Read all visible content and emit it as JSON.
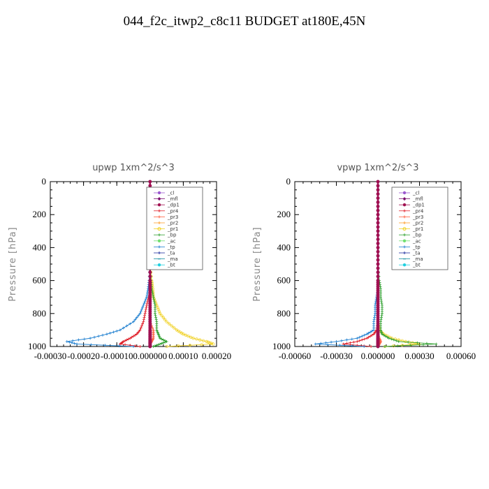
{
  "title": "044_f2c_itwp2_c8c11  BUDGET at180E,45N",
  "chart_data": [
    {
      "type": "line",
      "title": "upwp   1xm^2/s^3",
      "xlabel": "",
      "ylabel": "Pressure [hPa]",
      "xlim": [
        -0.0003,
        0.0002
      ],
      "ylim": [
        1000,
        0
      ],
      "x_tick_labels": [
        "-0.00030",
        "-0.00020",
        "-0.00010",
        "0.000000",
        "0.00010",
        "0.00020"
      ],
      "y_tick_labels": [
        "0",
        "200",
        "400",
        "600",
        "800",
        "1000"
      ],
      "y_ticks": [
        0,
        200,
        400,
        600,
        800,
        1000
      ],
      "x_ticks": [
        -0.0003,
        -0.0002,
        -0.0001,
        0.0,
        0.0001,
        0.0002
      ],
      "legend_placement": "top-right",
      "pressure": [
        0,
        100,
        200,
        300,
        400,
        500,
        600,
        650,
        700,
        750,
        800,
        850,
        900,
        925,
        950,
        970,
        985,
        1000
      ],
      "series": [
        {
          "name": "_cl",
          "color": "#9b59d0",
          "marker": "dot",
          "values": [
            0,
            0,
            0,
            0,
            0,
            0,
            0,
            0,
            0,
            0,
            0,
            0,
            0,
            0,
            0,
            0,
            0,
            0
          ]
        },
        {
          "name": "_mfl",
          "color": "#7a0f6e",
          "marker": "diamond",
          "values": [
            0,
            0,
            0,
            0,
            0,
            0,
            0,
            0,
            0,
            0,
            0,
            0,
            0,
            0,
            0,
            0,
            0,
            0
          ]
        },
        {
          "name": "_dp1",
          "color": "#a01050",
          "marker": "dot",
          "values": [
            0,
            0,
            0,
            0,
            0,
            0,
            0,
            0,
            0,
            0,
            0,
            0,
            0,
            0,
            0,
            0,
            0,
            0
          ]
        },
        {
          "name": "_pr4",
          "color": "#e0202a",
          "marker": "cross",
          "values": [
            0,
            0,
            0,
            0,
            0,
            0,
            0,
            0,
            -5e-06,
            -1e-05,
            -1.5e-05,
            -2e-05,
            -3e-05,
            -4e-05,
            -6e-05,
            -8e-05,
            -9e-05,
            -3e-05
          ]
        },
        {
          "name": "_pr3",
          "color": "#ff6040",
          "marker": "cross",
          "values": [
            0,
            0,
            0,
            0,
            0,
            0,
            0,
            0,
            0,
            0,
            0,
            0,
            1e-05,
            1e-05,
            1e-05,
            5e-06,
            0,
            0
          ]
        },
        {
          "name": "_pr2",
          "color": "#ff9c2a",
          "marker": "cross",
          "values": [
            0,
            0,
            0,
            0,
            0,
            0,
            0,
            0,
            0,
            0,
            0,
            0,
            0,
            0,
            0,
            0,
            0,
            0
          ]
        },
        {
          "name": "_pr1",
          "color": "#f0d020",
          "marker": "circle",
          "values": [
            0,
            0,
            0,
            0,
            0,
            0,
            5e-06,
            8e-06,
            1e-05,
            2e-05,
            3e-05,
            5e-05,
            8e-05,
            0.0001,
            0.00013,
            0.00017,
            0.00019,
            5e-05
          ]
        },
        {
          "name": "_bp",
          "color": "#30a030",
          "marker": "cross",
          "values": [
            0,
            0,
            0,
            0,
            0,
            0,
            3e-06,
            5e-06,
            1e-05,
            1.5e-05,
            1.5e-05,
            2e-05,
            2e-05,
            2.5e-05,
            3e-05,
            5e-05,
            3e-05,
            1e-05
          ]
        },
        {
          "name": "_ac",
          "color": "#70e070",
          "marker": "dot",
          "values": [
            0,
            0,
            0,
            0,
            0,
            0,
            0,
            0,
            0,
            0,
            0,
            0,
            0,
            0,
            0,
            0,
            0,
            0
          ]
        },
        {
          "name": "_tp",
          "color": "#2080d0",
          "marker": "cross",
          "values": [
            0,
            0,
            0,
            0,
            0,
            0,
            -3e-06,
            -6e-06,
            -1e-05,
            -2e-05,
            -3e-05,
            -5e-05,
            -9e-05,
            -0.00013,
            -0.00018,
            -0.00025,
            -0.00022,
            -5e-05
          ]
        },
        {
          "name": "_ta",
          "color": "#2030a0",
          "marker": "cross",
          "values": [
            0,
            0,
            0,
            0,
            0,
            0,
            0,
            0,
            0,
            0,
            0,
            0,
            0,
            0,
            0,
            0,
            0,
            0
          ]
        },
        {
          "name": "_ma",
          "color": "#1890a0",
          "marker": "dash",
          "values": [
            0,
            0,
            0,
            0,
            0,
            0,
            0,
            0,
            0,
            0,
            0,
            0,
            0,
            0,
            0,
            0,
            0,
            0
          ]
        },
        {
          "name": "_bt",
          "color": "#20d0e0",
          "marker": "dot",
          "values": [
            0,
            0,
            0,
            0,
            0,
            0,
            0,
            0,
            0,
            0,
            0,
            0,
            0,
            0,
            0,
            0,
            0,
            0
          ]
        }
      ]
    },
    {
      "type": "line",
      "title": "vpwp   1xm^2/s^3",
      "xlabel": "",
      "ylabel": "Pressure [hPa]",
      "xlim": [
        -0.0006,
        0.0006
      ],
      "ylim": [
        1000,
        0
      ],
      "x_tick_labels": [
        "-0.00060",
        "-0.00030",
        "0.000000",
        "0.00030",
        "0.00060"
      ],
      "y_tick_labels": [
        "0",
        "200",
        "400",
        "600",
        "800",
        "1000"
      ],
      "y_ticks": [
        0,
        200,
        400,
        600,
        800,
        1000
      ],
      "x_ticks": [
        -0.0006,
        -0.0003,
        0.0,
        0.0003,
        0.0006
      ],
      "legend_placement": "top-right",
      "pressure": [
        0,
        100,
        200,
        300,
        400,
        500,
        600,
        650,
        700,
        750,
        800,
        850,
        900,
        925,
        950,
        970,
        985,
        1000
      ],
      "series": [
        {
          "name": "_cl",
          "color": "#9b59d0",
          "marker": "dot",
          "values": [
            0,
            0,
            0,
            0,
            0,
            0,
            0,
            0,
            0,
            0,
            0,
            0,
            0,
            0,
            0,
            0,
            0,
            0
          ]
        },
        {
          "name": "_mfl",
          "color": "#7a0f6e",
          "marker": "diamond",
          "values": [
            0,
            0,
            0,
            0,
            0,
            0,
            0,
            0,
            0,
            0,
            0,
            0,
            0,
            0,
            0,
            0,
            0,
            0
          ]
        },
        {
          "name": "_dp1",
          "color": "#a01050",
          "marker": "dot",
          "values": [
            0,
            0,
            0,
            0,
            0,
            0,
            0,
            0,
            0,
            0,
            0,
            0,
            0,
            0,
            0,
            0,
            0,
            0
          ]
        },
        {
          "name": "_pr4",
          "color": "#e0202a",
          "marker": "cross",
          "values": [
            0,
            0,
            0,
            0,
            0,
            0,
            0,
            0,
            0,
            0,
            0,
            0,
            -1e-05,
            -3e-05,
            -8e-05,
            -0.00015,
            -0.00025,
            -5e-05
          ]
        },
        {
          "name": "_pr3",
          "color": "#ff6040",
          "marker": "cross",
          "values": [
            0,
            0,
            0,
            0,
            0,
            0,
            0,
            0,
            0,
            0,
            0,
            0,
            0,
            0,
            1e-05,
            2e-05,
            1e-05,
            0
          ]
        },
        {
          "name": "_pr2",
          "color": "#ff9c2a",
          "marker": "cross",
          "values": [
            0,
            0,
            0,
            0,
            0,
            0,
            0,
            0,
            0,
            0,
            0,
            0,
            0,
            0,
            0,
            0,
            0,
            0
          ]
        },
        {
          "name": "_pr1",
          "color": "#f0d020",
          "marker": "circle",
          "values": [
            0,
            0,
            0,
            0,
            0,
            0,
            0,
            0,
            0,
            0,
            0,
            0,
            1e-05,
            4e-05,
            0.0001,
            0.0002,
            0.0003,
            5e-05
          ]
        },
        {
          "name": "_bp",
          "color": "#30a030",
          "marker": "cross",
          "values": [
            0,
            0,
            0,
            0,
            0,
            0,
            1e-05,
            2e-05,
            2e-05,
            3e-05,
            3e-05,
            2e-05,
            2e-05,
            3e-05,
            8e-05,
            0.00015,
            0.00042,
            5e-05
          ]
        },
        {
          "name": "_ac",
          "color": "#70e070",
          "marker": "dot",
          "values": [
            0,
            0,
            0,
            0,
            0,
            0,
            0,
            0,
            0,
            0,
            0,
            0,
            0,
            0,
            0,
            0,
            0,
            0
          ]
        },
        {
          "name": "_tp",
          "color": "#2080d0",
          "marker": "cross",
          "values": [
            0,
            0,
            0,
            0,
            0,
            0,
            0,
            0,
            -1e-05,
            -2e-05,
            -2e-05,
            -3e-05,
            -3e-05,
            -8e-05,
            -0.00015,
            -0.0003,
            -0.00045,
            -0.0001
          ]
        },
        {
          "name": "_ta",
          "color": "#2030a0",
          "marker": "cross",
          "values": [
            0,
            0,
            0,
            0,
            0,
            0,
            0,
            0,
            0,
            0,
            0,
            0,
            0,
            0,
            0,
            0,
            0,
            0
          ]
        },
        {
          "name": "_ma",
          "color": "#1890a0",
          "marker": "dash",
          "values": [
            0,
            0,
            0,
            0,
            0,
            0,
            0,
            0,
            0,
            0,
            0,
            0,
            0,
            0,
            0,
            0,
            0,
            0
          ]
        },
        {
          "name": "_bt",
          "color": "#20d0e0",
          "marker": "dot",
          "values": [
            0,
            0,
            0,
            0,
            0,
            0,
            0,
            0,
            0,
            0,
            0,
            0,
            0,
            0,
            0,
            0,
            0,
            0
          ]
        }
      ]
    }
  ]
}
